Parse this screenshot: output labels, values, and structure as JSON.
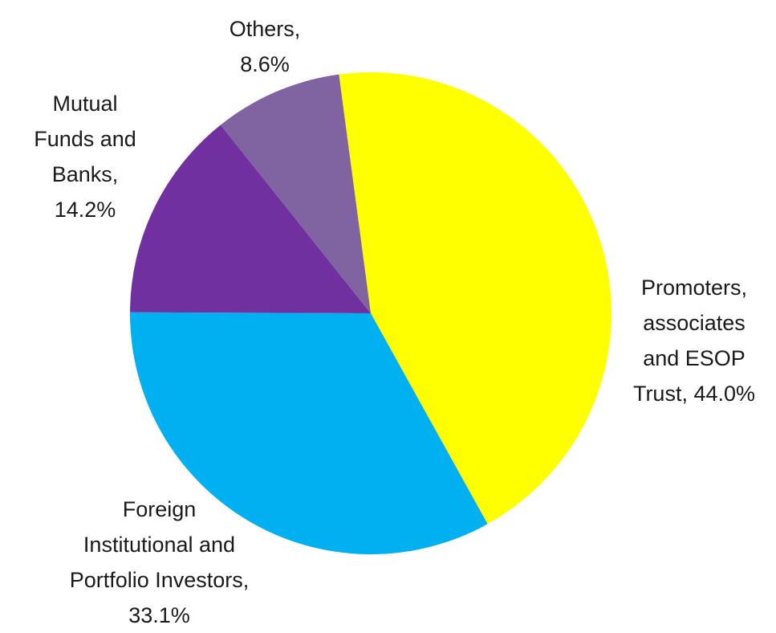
{
  "chart_data": {
    "type": "pie",
    "categories": [
      "Promoters, associates and ESOP Trust",
      "Foreign Institutional and Portfolio Investors",
      "Mutual Funds and Banks",
      "Others"
    ],
    "values": [
      44.0,
      33.1,
      14.2,
      8.6
    ],
    "value_labels": [
      "44.0%",
      "33.1%",
      "14.2%",
      "8.6%"
    ],
    "colors": [
      "#ffff00",
      "#00b0f0",
      "#7030a0",
      "#8064a2"
    ]
  }
}
